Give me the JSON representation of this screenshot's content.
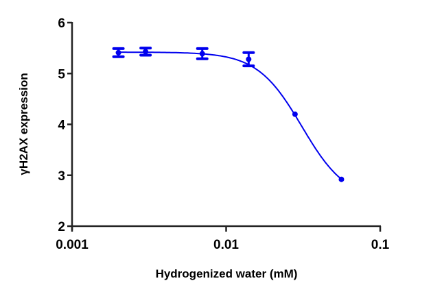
{
  "chart_data": {
    "type": "scatter",
    "title": "",
    "xlabel": "Hydrogenized water (mM)",
    "ylabel": "γH2AX expression",
    "xscale": "log",
    "xlim": [
      0.001,
      0.1
    ],
    "ylim": [
      2,
      6
    ],
    "xticks": [
      "0.001",
      "0.01",
      "0.1"
    ],
    "xtick_values": [
      0.001,
      0.01,
      0.1
    ],
    "yticks": [
      "2",
      "3",
      "4",
      "5",
      "6"
    ],
    "ytick_values": [
      2,
      3,
      4,
      5,
      6
    ],
    "grid": false,
    "color": "#0000ee",
    "series": [
      {
        "name": "γH2AX",
        "x": [
          0.002,
          0.003,
          0.007,
          0.014,
          0.028,
          0.056
        ],
        "y": [
          5.41,
          5.43,
          5.39,
          5.28,
          4.2,
          2.92
        ],
        "error": [
          0.08,
          0.07,
          0.1,
          0.13,
          0,
          0
        ]
      }
    ],
    "fit": {
      "model": "sigmoidal dose-response",
      "top": 5.42,
      "bottom": 2.5,
      "ec50": 0.031,
      "hill": 3
    }
  }
}
